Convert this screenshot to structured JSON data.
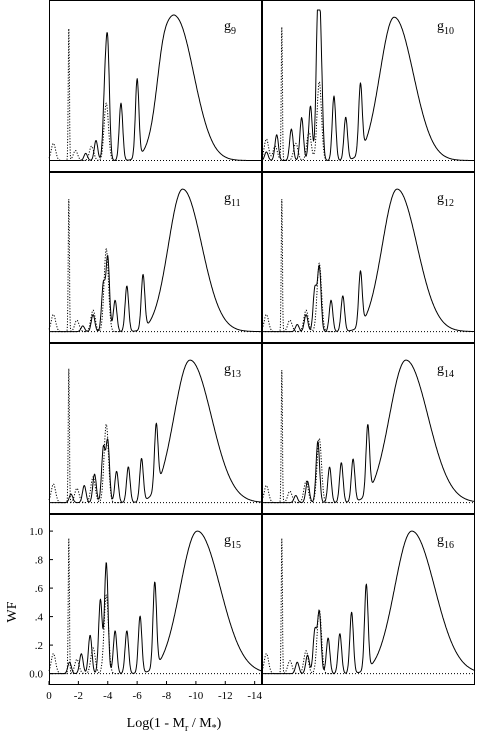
{
  "chart_data": {
    "type": "line",
    "xlabel": "Log(1 - M",
    "xlabel_sub": "r",
    "xlabel_mid": " / M",
    "xlabel_sub2": "*",
    "xlabel_end": ")",
    "ylabel": "WF",
    "xlim": [
      0,
      -14.5
    ],
    "ylim": [
      -0.08,
      1.12
    ],
    "x_ticks": [
      0,
      -2,
      -4,
      -6,
      -8,
      -10,
      -12,
      -14
    ],
    "x_tick_labels": [
      "0",
      "-2",
      "-4",
      "-6",
      "-8",
      "-10",
      "-12",
      "-14"
    ],
    "y_ticks": [
      0.0,
      0.2,
      0.4,
      0.6,
      0.8,
      1.0
    ],
    "y_tick_labels": [
      "0.0",
      ".2",
      ".4",
      ".6",
      ".8",
      "1.0"
    ],
    "grid": false,
    "legend": "none",
    "panels": [
      {
        "name": "g",
        "sub": "9",
        "peak_x": -8.6,
        "peak_w": 1.25,
        "shoulder": true,
        "bumps": [
          [
            -2.5,
            0.05
          ],
          [
            -3.2,
            0.14
          ],
          [
            -3.8,
            0.45
          ],
          [
            -4.0,
            0.75
          ],
          [
            -4.9,
            0.4
          ],
          [
            -6.0,
            0.55
          ]
        ],
        "dot_spike": [
          -1.35,
          0.92
        ],
        "dot_bumps": [
          [
            -0.3,
            0.12
          ],
          [
            -1.8,
            0.07
          ],
          [
            -2.9,
            0.1
          ],
          [
            -3.9,
            0.4
          ]
        ]
      },
      {
        "name": "g",
        "sub": "10",
        "peak_x": -9.0,
        "peak_w": 1.3,
        "shoulder": false,
        "bumps": [
          [
            -0.3,
            0.06
          ],
          [
            -1.0,
            0.18
          ],
          [
            -2.0,
            0.22
          ],
          [
            -2.7,
            0.3
          ],
          [
            -3.3,
            0.38
          ],
          [
            -3.8,
            1.0
          ],
          [
            -4.0,
            0.7
          ],
          [
            -4.9,
            0.45
          ],
          [
            -5.7,
            0.3
          ],
          [
            -6.7,
            0.48
          ]
        ],
        "dot_spike": [
          -1.35,
          0.93
        ],
        "dot_bumps": [
          [
            -0.3,
            0.15
          ],
          [
            -0.9,
            0.1
          ],
          [
            -2.3,
            0.12
          ],
          [
            -3.2,
            0.2
          ],
          [
            -3.9,
            0.55
          ]
        ]
      },
      {
        "name": "g",
        "sub": "11",
        "peak_x": -9.1,
        "peak_w": 1.3,
        "shoulder": false,
        "bumps": [
          [
            -2.3,
            0.04
          ],
          [
            -3.0,
            0.12
          ],
          [
            -3.7,
            0.33
          ],
          [
            -4.0,
            0.52
          ],
          [
            -4.5,
            0.22
          ],
          [
            -5.3,
            0.32
          ],
          [
            -6.4,
            0.38
          ]
        ],
        "dot_spike": [
          -1.35,
          0.93
        ],
        "dot_bumps": [
          [
            -0.3,
            0.12
          ],
          [
            -1.9,
            0.08
          ],
          [
            -3.0,
            0.15
          ],
          [
            -3.9,
            0.58
          ]
        ]
      },
      {
        "name": "g",
        "sub": "12",
        "peak_x": -9.2,
        "peak_w": 1.35,
        "shoulder": false,
        "bumps": [
          [
            -2.4,
            0.05
          ],
          [
            -3.0,
            0.12
          ],
          [
            -3.6,
            0.3
          ],
          [
            -3.9,
            0.45
          ],
          [
            -4.7,
            0.22
          ],
          [
            -5.5,
            0.25
          ],
          [
            -6.7,
            0.38
          ]
        ],
        "dot_spike": [
          -1.35,
          0.93
        ],
        "dot_bumps": [
          [
            -0.3,
            0.12
          ],
          [
            -1.9,
            0.08
          ],
          [
            -3.0,
            0.15
          ],
          [
            -3.9,
            0.48
          ]
        ]
      },
      {
        "name": "g",
        "sub": "13",
        "peak_x": -9.6,
        "peak_w": 1.45,
        "shoulder": false,
        "bumps": [
          [
            -1.5,
            0.06
          ],
          [
            -2.4,
            0.12
          ],
          [
            -3.1,
            0.2
          ],
          [
            -3.7,
            0.38
          ],
          [
            -4.0,
            0.43
          ],
          [
            -4.6,
            0.22
          ],
          [
            -5.4,
            0.25
          ],
          [
            -6.3,
            0.3
          ],
          [
            -7.3,
            0.45
          ]
        ],
        "dot_spike": [
          -1.35,
          0.94
        ],
        "dot_bumps": [
          [
            -0.3,
            0.13
          ],
          [
            -1.9,
            0.1
          ],
          [
            -3.0,
            0.18
          ],
          [
            -3.9,
            0.55
          ]
        ]
      },
      {
        "name": "g",
        "sub": "14",
        "peak_x": -9.8,
        "peak_w": 1.5,
        "shoulder": false,
        "bumps": [
          [
            -2.3,
            0.05
          ],
          [
            -3.1,
            0.15
          ],
          [
            -3.8,
            0.43
          ],
          [
            -4.6,
            0.25
          ],
          [
            -5.4,
            0.28
          ],
          [
            -6.2,
            0.3
          ],
          [
            -7.2,
            0.48
          ]
        ],
        "dot_spike": [
          -1.35,
          0.93
        ],
        "dot_bumps": [
          [
            -0.3,
            0.12
          ],
          [
            -1.9,
            0.08
          ],
          [
            -3.0,
            0.15
          ],
          [
            -3.9,
            0.45
          ]
        ]
      },
      {
        "name": "g",
        "sub": "15",
        "peak_x": -10.1,
        "peak_w": 1.55,
        "shoulder": false,
        "bumps": [
          [
            -1.4,
            0.08
          ],
          [
            -2.2,
            0.14
          ],
          [
            -2.8,
            0.27
          ],
          [
            -3.5,
            0.52
          ],
          [
            -3.9,
            0.78
          ],
          [
            -4.5,
            0.3
          ],
          [
            -5.3,
            0.3
          ],
          [
            -6.2,
            0.4
          ],
          [
            -7.2,
            0.6
          ]
        ],
        "dot_spike": [
          -1.35,
          0.95
        ],
        "dot_bumps": [
          [
            -0.3,
            0.14
          ],
          [
            -1.9,
            0.1
          ],
          [
            -3.0,
            0.18
          ],
          [
            -3.9,
            0.55
          ]
        ]
      },
      {
        "name": "g",
        "sub": "16",
        "peak_x": -10.2,
        "peak_w": 1.55,
        "shoulder": false,
        "bumps": [
          [
            -2.4,
            0.08
          ],
          [
            -3.1,
            0.13
          ],
          [
            -3.6,
            0.3
          ],
          [
            -3.9,
            0.43
          ],
          [
            -4.5,
            0.25
          ],
          [
            -5.3,
            0.28
          ],
          [
            -6.1,
            0.43
          ],
          [
            -7.1,
            0.6
          ]
        ],
        "dot_spike": [
          -1.35,
          0.95
        ],
        "dot_bumps": [
          [
            -0.3,
            0.14
          ],
          [
            -1.9,
            0.09
          ],
          [
            -3.0,
            0.16
          ],
          [
            -3.9,
            0.45
          ]
        ]
      }
    ]
  }
}
